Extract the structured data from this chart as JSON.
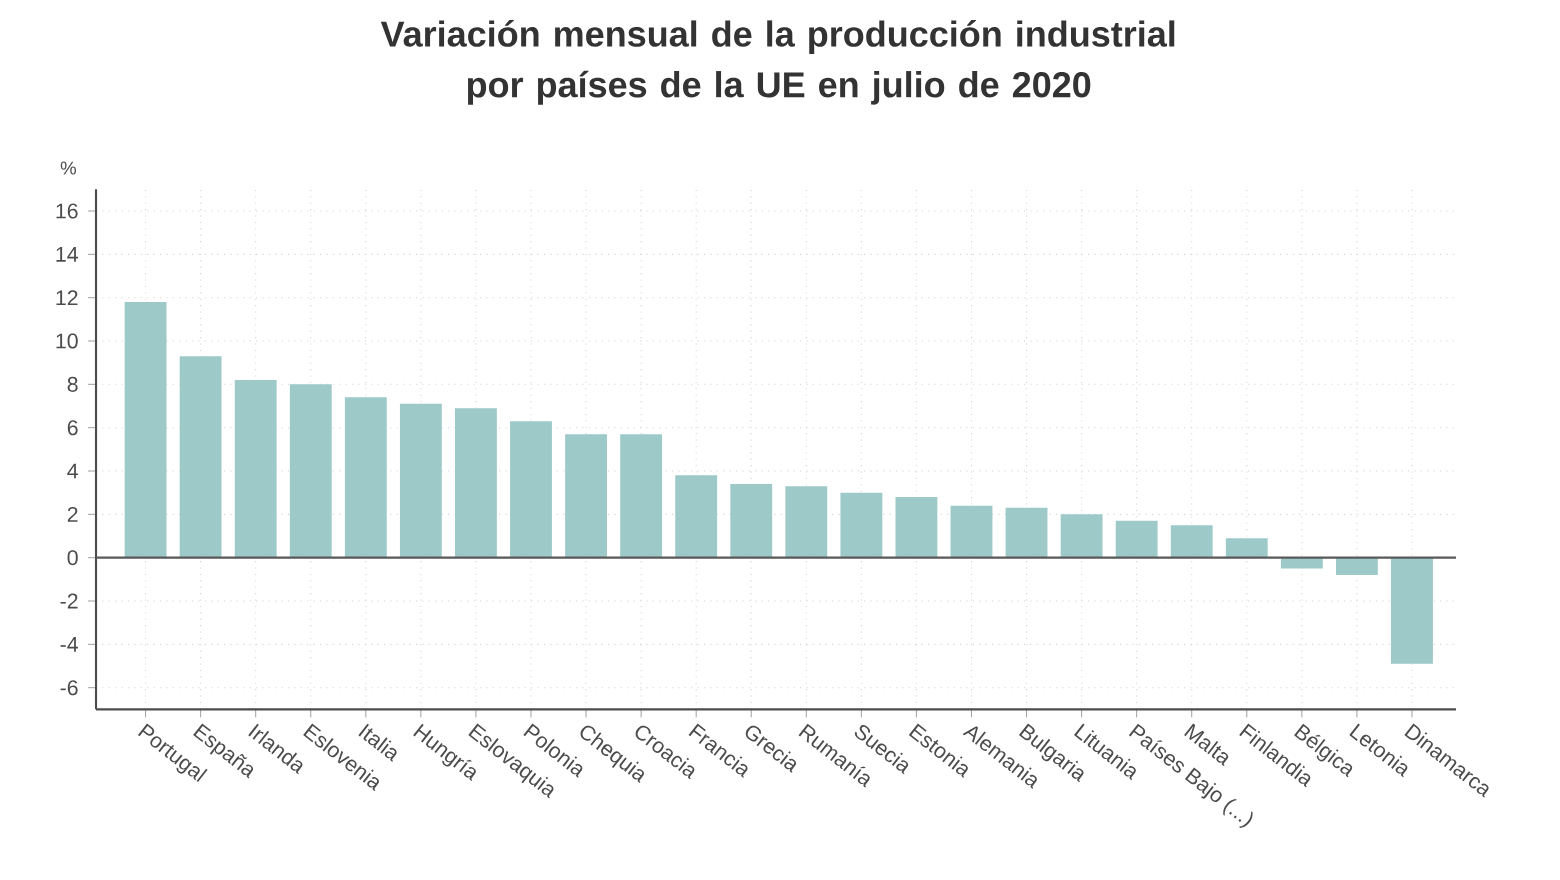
{
  "chart_data": {
    "type": "bar",
    "title": "Variación mensual de la producción industrial por países de la UE en julio de 2020",
    "ylabel": "%",
    "categories": [
      "Portugal",
      "España",
      "Irlanda",
      "Eslovenia",
      "Italia",
      "Hungría",
      "Eslovaquia",
      "Polonia",
      "Chequia",
      "Croacia",
      "Francia",
      "Grecia",
      "Rumanía",
      "Suecia",
      "Estonia",
      "Alemania",
      "Bulgaria",
      "Lituania",
      "Países Bajo (...)",
      "Malta",
      "Finlandia",
      "Bélgica",
      "Letonia",
      "Dinamarca"
    ],
    "values": [
      11.8,
      9.3,
      8.2,
      8.0,
      7.4,
      7.1,
      6.9,
      6.3,
      5.7,
      5.7,
      3.8,
      3.4,
      3.3,
      3.0,
      2.8,
      2.4,
      2.3,
      2.0,
      1.7,
      1.5,
      0.9,
      -0.5,
      -0.8,
      -4.9
    ],
    "color": "#9dc9c8",
    "ylim": [
      -7,
      17
    ],
    "yticks": [
      -6,
      -4,
      -2,
      0,
      2,
      4,
      6,
      8,
      10,
      12,
      14,
      16
    ],
    "grid": true
  }
}
